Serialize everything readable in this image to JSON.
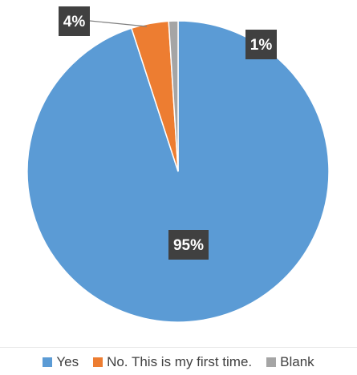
{
  "chart_data": {
    "type": "pie",
    "title": "",
    "slices": [
      {
        "label": "Yes",
        "value": 95,
        "display": "95%",
        "color": "#5b9bd5"
      },
      {
        "label": "No. This is my first time.",
        "value": 4,
        "display": "4%",
        "color": "#ed7d31"
      },
      {
        "label": "Blank",
        "value": 1,
        "display": "1%",
        "color": "#a5a5a5"
      }
    ],
    "start_angle": "12 o'clock",
    "direction": "clockwise",
    "legend_position": "bottom",
    "data_label_style": "white bold text on dark box"
  }
}
